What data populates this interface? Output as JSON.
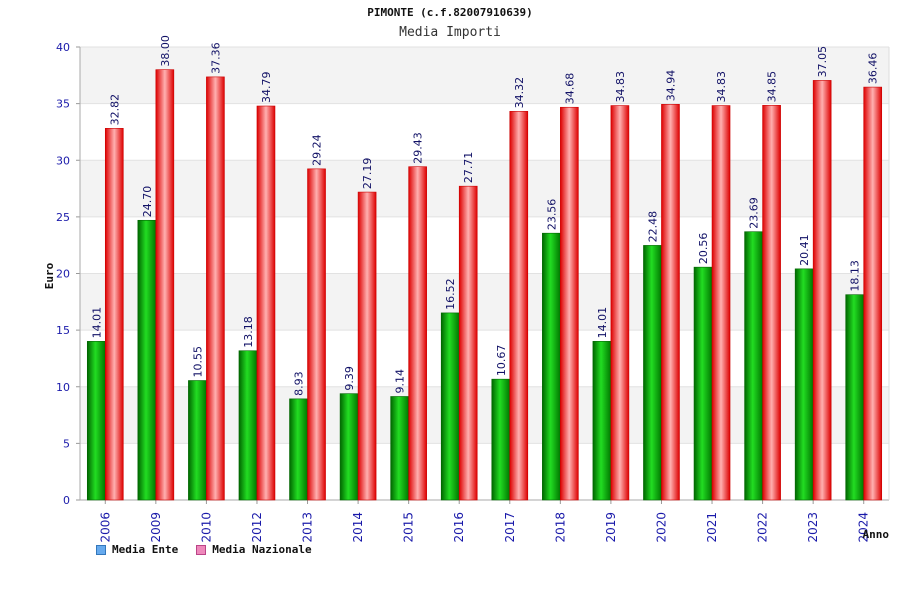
{
  "header": {
    "title": "PIMONTE (c.f.82007910639)",
    "subtitle": "Media Importi"
  },
  "chart_data": {
    "type": "bar",
    "xlabel": "Anno",
    "ylabel": "Euro",
    "ylim": [
      0,
      40
    ],
    "yticks": [
      0,
      5,
      10,
      15,
      20,
      25,
      30,
      35,
      40
    ],
    "grid": true,
    "legend_position": "bottom-left",
    "categories": [
      "2006",
      "2009",
      "2010",
      "2012",
      "2013",
      "2014",
      "2015",
      "2016",
      "2017",
      "2018",
      "2019",
      "2020",
      "2021",
      "2022",
      "2023",
      "2024"
    ],
    "series": [
      {
        "name": "Media Ente",
        "color": "#00aa00",
        "labels": [
          "14.01",
          "24.70",
          "10.55",
          "13.18",
          "8.93",
          "9.39",
          "9.14",
          "16.52",
          "10.67",
          "23.56",
          "14.01",
          "22.48",
          "20.56",
          "23.69",
          "20.41",
          "18.13"
        ],
        "values": [
          14.01,
          24.7,
          10.55,
          13.18,
          8.93,
          9.39,
          9.14,
          16.52,
          10.67,
          23.56,
          14.01,
          22.48,
          20.56,
          23.69,
          20.41,
          18.13
        ]
      },
      {
        "name": "Media Nazionale",
        "color": "#ee1111",
        "labels": [
          "32.82",
          "38.00",
          "37.36",
          "34.79",
          "29.24",
          "27.19",
          "29.43",
          "27.71",
          "34.32",
          "34.68",
          "34.83",
          "34.94",
          "34.83",
          "34.85",
          "37.05",
          "36.46"
        ],
        "values": [
          32.82,
          38.0,
          37.36,
          34.79,
          29.24,
          27.19,
          29.43,
          27.71,
          34.32,
          34.68,
          34.83,
          34.94,
          34.83,
          34.85,
          37.05,
          36.46
        ]
      }
    ]
  },
  "legend": {
    "items": [
      {
        "label": "Media Ente",
        "color": "#66aaee"
      },
      {
        "label": "Media Nazionale",
        "color": "#ee88bb"
      }
    ]
  }
}
